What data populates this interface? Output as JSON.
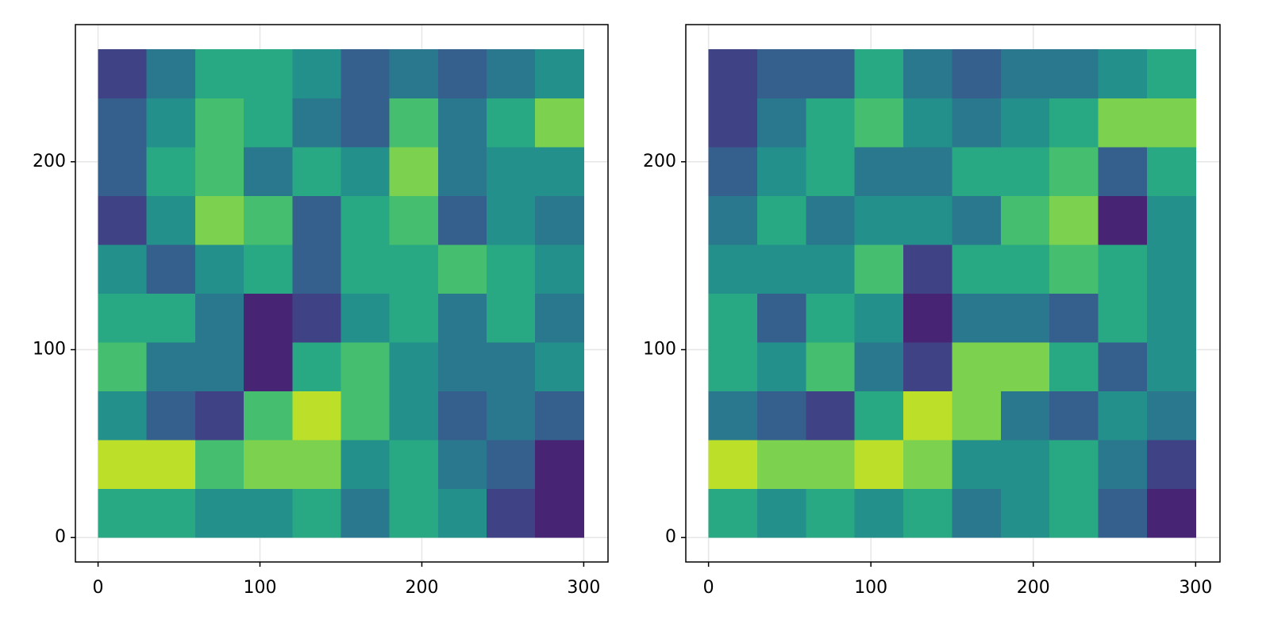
{
  "chart_data": [
    {
      "type": "heatmap",
      "colormap": "viridis",
      "clim": [
        0,
        1
      ],
      "grid": true,
      "xlim": [
        -14,
        315
      ],
      "ylim": [
        -13,
        273
      ],
      "xticks": [
        0,
        100,
        200,
        300
      ],
      "yticks": [
        0,
        100,
        200
      ],
      "x": [
        0,
        30,
        60,
        90,
        120,
        150,
        180,
        210,
        240,
        270,
        300
      ],
      "y": [
        0,
        26,
        52,
        78,
        104,
        130,
        156,
        182,
        208,
        234,
        260
      ],
      "values": [
        [
          0.6,
          0.6,
          0.5,
          0.5,
          0.6,
          0.4,
          0.6,
          0.5,
          0.2,
          0.1
        ],
        [
          0.9,
          0.9,
          0.7,
          0.8,
          0.8,
          0.5,
          0.6,
          0.4,
          0.3,
          0.1
        ],
        [
          0.5,
          0.3,
          0.2,
          0.7,
          0.9,
          0.7,
          0.5,
          0.3,
          0.4,
          0.3
        ],
        [
          0.7,
          0.4,
          0.4,
          0.1,
          0.6,
          0.7,
          0.5,
          0.4,
          0.4,
          0.5
        ],
        [
          0.6,
          0.6,
          0.4,
          0.1,
          0.2,
          0.5,
          0.6,
          0.4,
          0.6,
          0.4
        ],
        [
          0.5,
          0.3,
          0.5,
          0.6,
          0.3,
          0.6,
          0.6,
          0.7,
          0.6,
          0.5
        ],
        [
          0.2,
          0.5,
          0.8,
          0.7,
          0.3,
          0.6,
          0.7,
          0.3,
          0.5,
          0.4
        ],
        [
          0.3,
          0.6,
          0.7,
          0.4,
          0.6,
          0.5,
          0.8,
          0.4,
          0.5,
          0.5
        ],
        [
          0.3,
          0.5,
          0.7,
          0.6,
          0.4,
          0.3,
          0.7,
          0.4,
          0.6,
          0.8
        ],
        [
          0.2,
          0.4,
          0.6,
          0.6,
          0.5,
          0.3,
          0.4,
          0.3,
          0.4,
          0.5
        ]
      ]
    },
    {
      "type": "heatmap",
      "colormap": "viridis",
      "clim": [
        0,
        1
      ],
      "grid": true,
      "xlim": [
        -14,
        315
      ],
      "ylim": [
        -13,
        273
      ],
      "xticks": [
        0,
        100,
        200,
        300
      ],
      "yticks": [
        0,
        100,
        200
      ],
      "x": [
        0,
        30,
        60,
        90,
        120,
        150,
        180,
        210,
        240,
        270,
        300
      ],
      "y": [
        0,
        26,
        52,
        78,
        104,
        130,
        156,
        182,
        208,
        234,
        260
      ],
      "values": [
        [
          0.6,
          0.5,
          0.6,
          0.5,
          0.6,
          0.4,
          0.5,
          0.6,
          0.3,
          0.1
        ],
        [
          0.9,
          0.8,
          0.8,
          0.9,
          0.8,
          0.5,
          0.5,
          0.6,
          0.4,
          0.2
        ],
        [
          0.4,
          0.3,
          0.2,
          0.6,
          0.9,
          0.8,
          0.4,
          0.3,
          0.5,
          0.4
        ],
        [
          0.6,
          0.5,
          0.7,
          0.4,
          0.2,
          0.8,
          0.8,
          0.6,
          0.3,
          0.5
        ],
        [
          0.6,
          0.3,
          0.6,
          0.5,
          0.1,
          0.4,
          0.4,
          0.3,
          0.6,
          0.5
        ],
        [
          0.5,
          0.5,
          0.5,
          0.7,
          0.2,
          0.6,
          0.6,
          0.7,
          0.6,
          0.5
        ],
        [
          0.4,
          0.6,
          0.4,
          0.5,
          0.5,
          0.4,
          0.7,
          0.8,
          0.1,
          0.5
        ],
        [
          0.3,
          0.5,
          0.6,
          0.4,
          0.4,
          0.6,
          0.6,
          0.7,
          0.3,
          0.6
        ],
        [
          0.2,
          0.4,
          0.6,
          0.7,
          0.5,
          0.4,
          0.5,
          0.6,
          0.8,
          0.8
        ],
        [
          0.2,
          0.3,
          0.3,
          0.6,
          0.4,
          0.3,
          0.4,
          0.4,
          0.5,
          0.6
        ]
      ]
    }
  ]
}
